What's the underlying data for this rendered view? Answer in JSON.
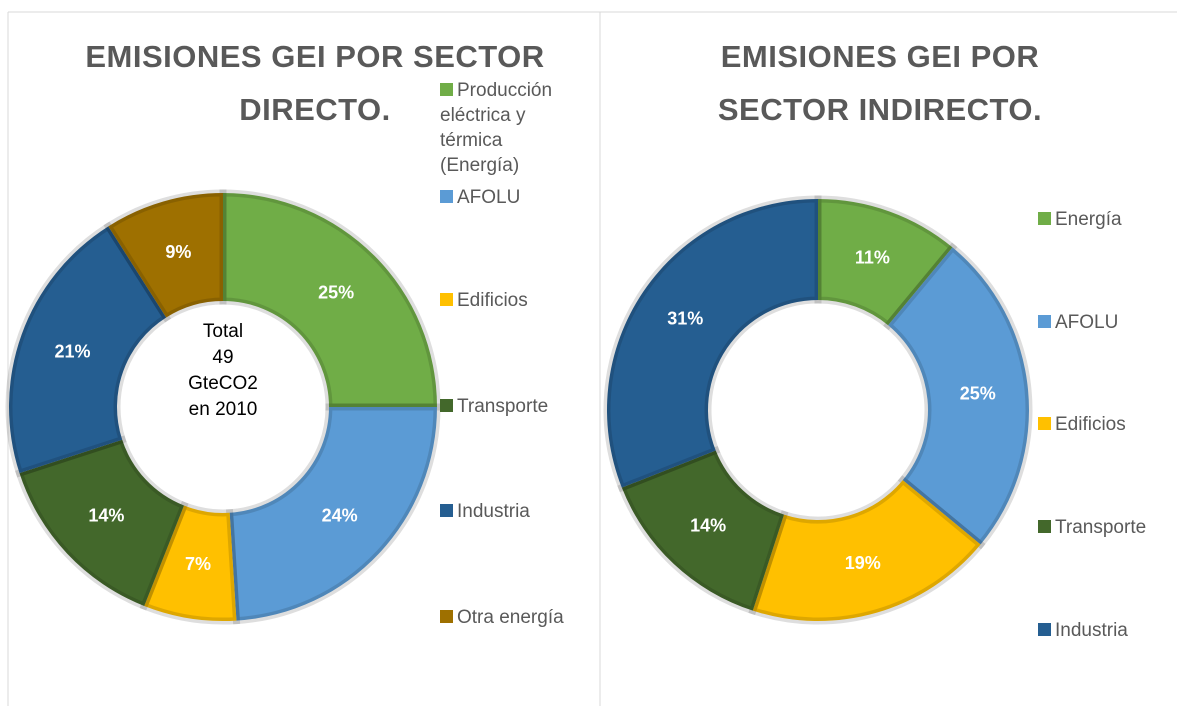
{
  "chart_data": [
    {
      "type": "donut",
      "title": "EMISIONES GEI POR SECTOR DIRECTO.",
      "categories": [
        "Producción eléctrica y térmica (Energía)",
        "AFOLU",
        "Edificios",
        "Transporte",
        "Industria",
        "Otra energía"
      ],
      "values": [
        25,
        24,
        7,
        14,
        21,
        9
      ],
      "value_labels": [
        "25%",
        "24%",
        "7%",
        "14%",
        "21%",
        "9%"
      ],
      "colors": [
        "#70ad47",
        "#5b9bd5",
        "#ffc000",
        "#43682b",
        "#255e91",
        "#9e7000"
      ],
      "center_text": [
        "Total",
        "49",
        "GteCO2",
        "en 2010"
      ],
      "legend": "right"
    },
    {
      "type": "donut",
      "title": "EMISIONES GEI POR SECTOR INDIRECTO.",
      "categories": [
        "Energía",
        "AFOLU",
        "Edificios",
        "Transporte",
        "Industria"
      ],
      "values": [
        11,
        25,
        19,
        14,
        31
      ],
      "value_labels": [
        "11%",
        "25%",
        "19%",
        "14%",
        "31%"
      ],
      "colors": [
        "#70ad47",
        "#5b9bd5",
        "#ffc000",
        "#43682b",
        "#255e91"
      ],
      "legend": "right"
    }
  ]
}
